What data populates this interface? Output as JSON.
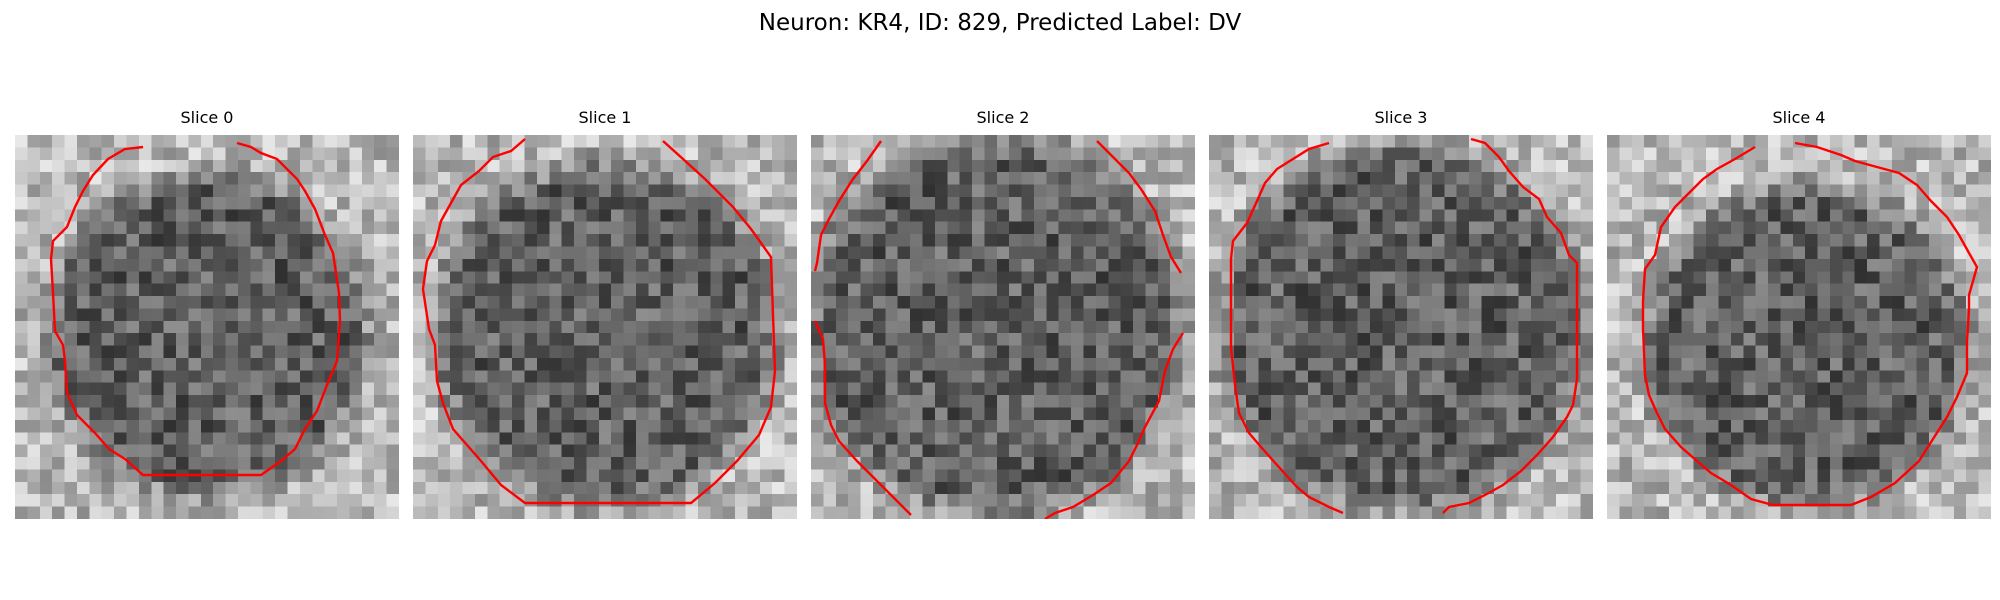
{
  "figure": {
    "title": "Neuron: KR4, ID: 829, Predicted Label: DV"
  },
  "colors": {
    "contour": "#ff0000",
    "background": "#ffffff"
  },
  "panels": [
    {
      "title": "Slice 0"
    },
    {
      "title": "Slice 1"
    },
    {
      "title": "Slice 2"
    },
    {
      "title": "Slice 3"
    },
    {
      "title": "Slice 4"
    }
  ]
}
